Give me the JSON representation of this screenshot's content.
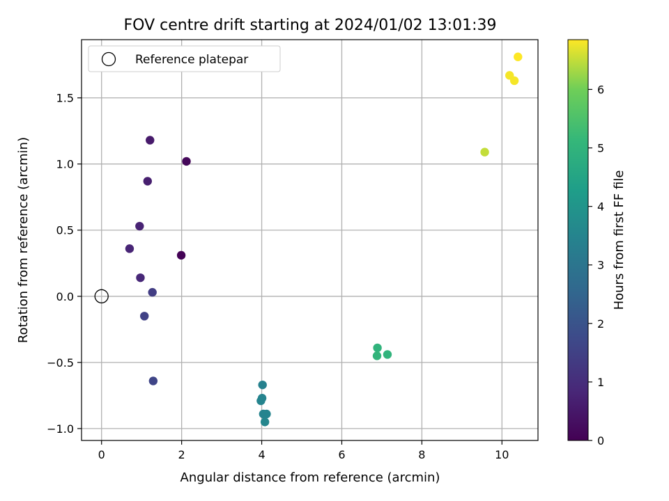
{
  "chart_data": {
    "type": "scatter",
    "title": "FOV centre drift starting at 2024/01/02 13:01:39",
    "xlabel": "Angular distance from reference (arcmin)",
    "ylabel": "Rotation from reference (arcmin)",
    "xlim": [
      -0.5,
      10.9
    ],
    "ylim": [
      -1.09,
      1.94
    ],
    "xticks": [
      0,
      2,
      4,
      6,
      8,
      10
    ],
    "xtick_labels": [
      "0",
      "2",
      "4",
      "6",
      "8",
      "10"
    ],
    "yticks": [
      -1.0,
      -0.5,
      0.0,
      0.5,
      1.0,
      1.5
    ],
    "ytick_labels": [
      "−1.0",
      "−0.5",
      "0.0",
      "0.5",
      "1.0",
      "1.5"
    ],
    "grid": true,
    "legend": {
      "position": "top-left",
      "entries": [
        "Reference platepar"
      ]
    },
    "reference_point": {
      "label": "Reference platepar",
      "x": 0.0,
      "y": 0.0
    },
    "colorbar": {
      "label": "Hours from first FF file",
      "colormap": "viridis",
      "range": [
        0,
        6.85
      ],
      "ticks": [
        0,
        1,
        2,
        3,
        4,
        5,
        6
      ],
      "tick_labels": [
        "0",
        "1",
        "2",
        "3",
        "4",
        "5",
        "6"
      ]
    },
    "points": [
      {
        "x": 1.99,
        "y": 0.31,
        "c": 0.05
      },
      {
        "x": 2.12,
        "y": 1.02,
        "c": 0.15
      },
      {
        "x": 1.21,
        "y": 1.18,
        "c": 0.55
      },
      {
        "x": 1.15,
        "y": 0.87,
        "c": 0.65
      },
      {
        "x": 0.95,
        "y": 0.53,
        "c": 0.75
      },
      {
        "x": 0.7,
        "y": 0.36,
        "c": 0.8
      },
      {
        "x": 0.97,
        "y": 0.14,
        "c": 0.85
      },
      {
        "x": 1.27,
        "y": 0.03,
        "c": 1.4
      },
      {
        "x": 1.07,
        "y": -0.15,
        "c": 1.5
      },
      {
        "x": 1.29,
        "y": -0.64,
        "c": 1.6
      },
      {
        "x": 4.02,
        "y": -0.67,
        "c": 3.4
      },
      {
        "x": 4.01,
        "y": -0.77,
        "c": 3.45
      },
      {
        "x": 3.98,
        "y": -0.79,
        "c": 3.5
      },
      {
        "x": 4.04,
        "y": -0.89,
        "c": 3.45
      },
      {
        "x": 4.12,
        "y": -0.89,
        "c": 3.5
      },
      {
        "x": 4.08,
        "y": -0.95,
        "c": 3.55
      },
      {
        "x": 6.89,
        "y": -0.39,
        "c": 5.0
      },
      {
        "x": 7.14,
        "y": -0.44,
        "c": 5.0
      },
      {
        "x": 6.88,
        "y": -0.45,
        "c": 5.05
      },
      {
        "x": 9.57,
        "y": 1.09,
        "c": 6.5
      },
      {
        "x": 10.19,
        "y": 1.67,
        "c": 6.8
      },
      {
        "x": 10.31,
        "y": 1.63,
        "c": 6.8
      },
      {
        "x": 10.4,
        "y": 1.81,
        "c": 6.85
      }
    ]
  }
}
